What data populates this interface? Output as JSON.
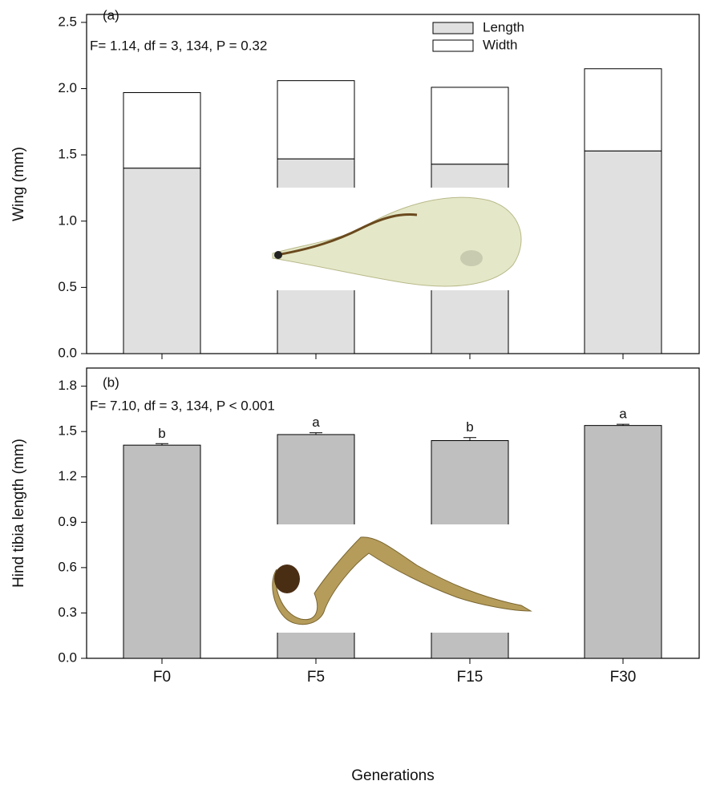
{
  "chart_data": [
    {
      "type": "stacked-bar",
      "panel_label": "(a)",
      "annotation": "F= 1.14, df = 3, 134, P = 0.32",
      "ylabel": "Wing (mm)",
      "series": [
        {
          "name": "Length",
          "color": "#e0e0e0",
          "values": [
            1.4,
            1.47,
            1.43,
            1.53
          ]
        },
        {
          "name": "Width",
          "color": "#ffffff",
          "values": [
            0.57,
            0.59,
            0.58,
            0.62
          ]
        }
      ],
      "ylim": [
        0,
        2.56
      ],
      "yticks": [
        {
          "value": 0,
          "label": "0.0"
        },
        0.5,
        {
          "value": 1,
          "label": "1.0"
        },
        1.5,
        {
          "value": 2,
          "label": "2.0"
        },
        2.5
      ]
    },
    {
      "type": "bar",
      "panel_label": "(b)",
      "annotation": "F= 7.10, df = 3, 134, P < 0.001",
      "ylabel": "Hind tibia length (mm)",
      "xlabel": "Generations",
      "categories": [
        "F0",
        "F5",
        "F15",
        "F30"
      ],
      "values": [
        1.41,
        1.48,
        1.44,
        1.54
      ],
      "errors": [
        0.01,
        0.012,
        0.02,
        0.008
      ],
      "letters": [
        "b",
        "a",
        "b",
        "a"
      ],
      "color": "#bfbfbf",
      "ylim": [
        0,
        1.92
      ],
      "yticks": [
        {
          "value": 0,
          "label": "0.0"
        },
        0.3,
        0.6,
        0.9,
        1.2,
        1.5,
        1.8
      ]
    }
  ]
}
